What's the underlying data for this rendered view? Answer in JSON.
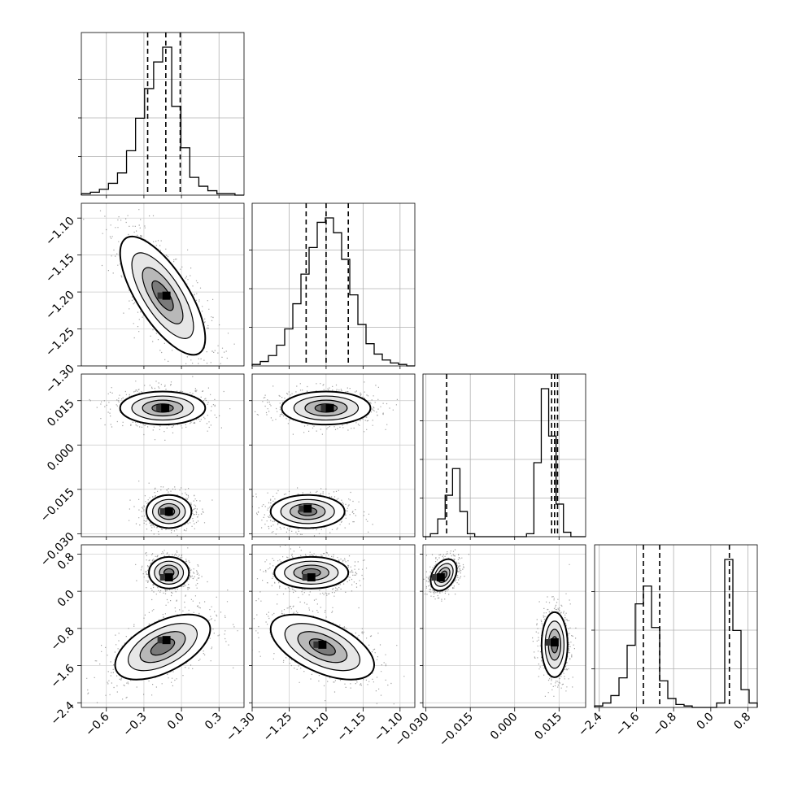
{
  "chart_data": {
    "type": "corner",
    "parameters": [
      {
        "range": [
          -0.8,
          0.5
        ],
        "ticks": [
          -0.6,
          -0.3,
          0.0,
          0.3
        ],
        "tick_labels": [
          "−0.6",
          "−0.3",
          "0.0",
          "0.3"
        ],
        "quantiles": [
          -0.27,
          -0.125,
          -0.01
        ],
        "hist": [
          1,
          2,
          4,
          8,
          15,
          30,
          52,
          72,
          90,
          100,
          60,
          32,
          12,
          6,
          3,
          1,
          1,
          0
        ]
      },
      {
        "range": [
          -1.3,
          -1.08
        ],
        "ticks": [
          -1.3,
          -1.25,
          -1.2,
          -1.15,
          -1.1
        ],
        "tick_labels": [
          "−1.30",
          "−1.25",
          "−1.20",
          "−1.15",
          "−1.10"
        ],
        "quantiles": [
          -1.227,
          -1.2,
          -1.17
        ],
        "hist": [
          1,
          3,
          7,
          14,
          25,
          42,
          62,
          80,
          97,
          100,
          90,
          72,
          48,
          28,
          15,
          8,
          4,
          2,
          1,
          0
        ]
      },
      {
        "range": [
          -0.031,
          0.024
        ],
        "ticks": [
          -0.03,
          -0.015,
          0.0,
          0.015
        ],
        "tick_labels": [
          "−0.030",
          "−0.015",
          "0.000",
          "0.015"
        ],
        "quantiles": [
          -0.023,
          0.0125,
          0.0135,
          0.0145
        ],
        "hist": [
          0,
          2,
          12,
          28,
          46,
          17,
          2,
          0,
          0,
          0,
          0,
          0,
          0,
          0,
          2,
          50,
          100,
          68,
          22,
          3,
          0,
          0
        ]
      },
      {
        "range": [
          -2.5,
          1.0
        ],
        "ticks": [
          -2.4,
          -1.6,
          -0.8,
          0.0,
          0.8
        ],
        "tick_labels": [
          "−2.4",
          "−1.6",
          "−0.8",
          "0.0",
          "0.8"
        ],
        "quantiles": [
          -1.45,
          -1.1,
          0.4
        ],
        "hist": [
          1,
          3,
          8,
          20,
          42,
          70,
          82,
          54,
          18,
          6,
          2,
          1,
          0,
          0,
          0,
          3,
          100,
          52,
          12,
          3
        ]
      }
    ],
    "blobs": [
      {
        "row": 1,
        "col": 0,
        "cx": -0.15,
        "cy": -1.205,
        "sx": 0.17,
        "sy": 0.04,
        "rho": -0.72,
        "cores": [
          [
            -0.12,
            -1.205
          ]
        ]
      },
      {
        "row": 2,
        "col": 0,
        "cx": -0.15,
        "cy": 0.0125,
        "sx": 0.17,
        "sy": 0.0028,
        "rho": 0.0,
        "cores": [
          [
            -0.13,
            0.0125
          ]
        ]
      },
      {
        "row": 2,
        "col": 0,
        "cx": -0.1,
        "cy": -0.0225,
        "sx": 0.09,
        "sy": 0.0028,
        "rho": 0.0,
        "cores": [
          [
            -0.1,
            -0.0225
          ]
        ]
      },
      {
        "row": 2,
        "col": 1,
        "cx": -1.2,
        "cy": 0.0125,
        "sx": 0.03,
        "sy": 0.0028,
        "rho": 0.0,
        "cores": [
          [
            -1.195,
            0.0125
          ]
        ]
      },
      {
        "row": 2,
        "col": 1,
        "cx": -1.225,
        "cy": -0.0225,
        "sx": 0.025,
        "sy": 0.0028,
        "rho": 0.0,
        "cores": [
          [
            -1.225,
            -0.0215
          ]
        ]
      },
      {
        "row": 3,
        "col": 0,
        "cx": -0.1,
        "cy": 0.4,
        "sx": 0.08,
        "sy": 0.17,
        "rho": 0.0,
        "cores": [
          [
            -0.1,
            0.3
          ]
        ]
      },
      {
        "row": 3,
        "col": 0,
        "cx": -0.15,
        "cy": -1.2,
        "sx": 0.19,
        "sy": 0.35,
        "rho": 0.55,
        "cores": [
          [
            -0.12,
            -1.05
          ]
        ]
      },
      {
        "row": 3,
        "col": 1,
        "cx": -1.22,
        "cy": 0.4,
        "sx": 0.025,
        "sy": 0.17,
        "rho": 0.0,
        "cores": [
          [
            -1.22,
            0.3
          ]
        ]
      },
      {
        "row": 3,
        "col": 1,
        "cx": -1.205,
        "cy": -1.2,
        "sx": 0.035,
        "sy": 0.35,
        "rho": -0.55,
        "cores": [
          [
            -1.205,
            -1.15
          ]
        ]
      },
      {
        "row": 3,
        "col": 2,
        "cx": -0.024,
        "cy": 0.35,
        "sx": 0.0022,
        "sy": 0.17,
        "rho": 0.35,
        "cores": [
          [
            -0.025,
            0.3
          ]
        ]
      },
      {
        "row": 3,
        "col": 2,
        "cx": 0.0135,
        "cy": -1.15,
        "sx": 0.0022,
        "sy": 0.35,
        "rho": 0.0,
        "cores": [
          [
            0.0135,
            -1.1
          ]
        ]
      }
    ]
  }
}
